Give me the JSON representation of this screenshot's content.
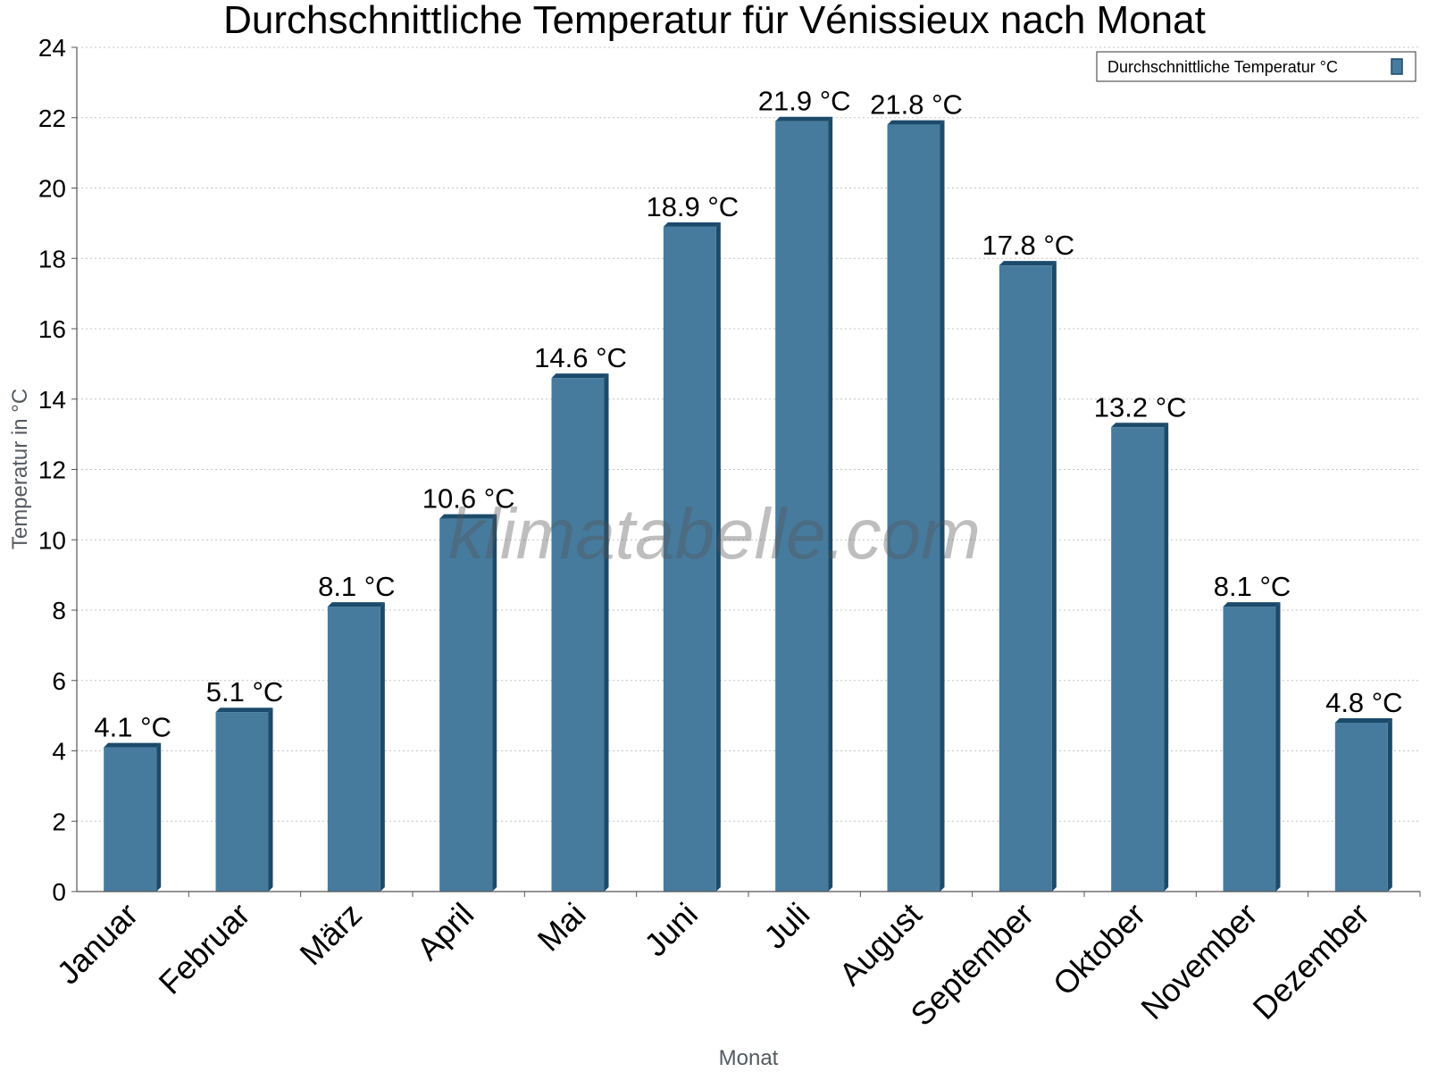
{
  "chart_data": {
    "type": "bar",
    "title": "Durchschnittliche Temperatur für Vénissieux nach Monat",
    "xlabel": "Monat",
    "ylabel": "Temperatur in °C",
    "ylim": [
      0,
      24
    ],
    "yticks": [
      0,
      2,
      4,
      6,
      8,
      10,
      12,
      14,
      16,
      18,
      20,
      22,
      24
    ],
    "grid": true,
    "legend_position": "top-right",
    "categories": [
      "Januar",
      "Februar",
      "März",
      "April",
      "Mai",
      "Juni",
      "Juli",
      "August",
      "September",
      "Oktober",
      "November",
      "Dezember"
    ],
    "series": [
      {
        "name": "Durchschnittliche Temperatur °C",
        "values": [
          4.1,
          5.1,
          8.1,
          10.6,
          14.6,
          18.9,
          21.9,
          21.8,
          17.8,
          13.2,
          8.1,
          4.8
        ],
        "labels": [
          "4.1 °C",
          "5.1 °C",
          "8.1 °C",
          "10.6 °C",
          "14.6 °C",
          "18.9 °C",
          "21.9 °C",
          "21.8 °C",
          "17.8 °C",
          "13.2 °C",
          "8.1 °C",
          "4.8 °C"
        ],
        "color": "#467b9e",
        "edge_color": "#1c4a6a"
      }
    ],
    "watermark": "klimatabelle.com"
  }
}
